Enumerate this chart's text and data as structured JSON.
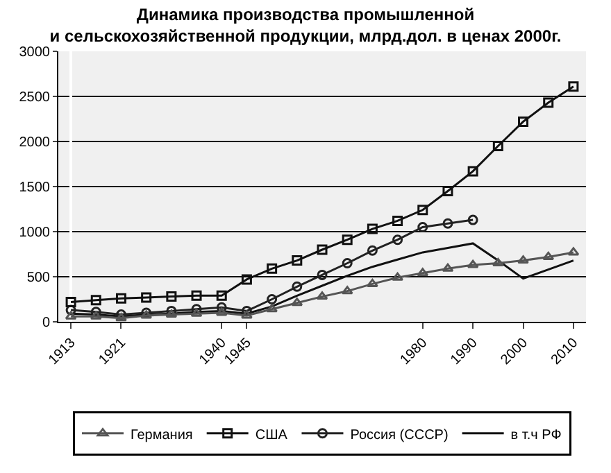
{
  "chart_data": {
    "type": "line",
    "title": "Динамика производства промышленной\nи сельскохозяйственной продукции, млрд.дол. в ценах 2000г.",
    "categories": [
      "1913",
      null,
      "1921",
      null,
      null,
      null,
      "1940",
      "1945",
      null,
      null,
      null,
      null,
      null,
      null,
      "1980",
      null,
      "1990",
      null,
      "2000",
      null,
      "2010"
    ],
    "series": [
      {
        "name": "Германия",
        "color": "#555555",
        "marker": "triangle",
        "values": [
          60,
          60,
          40,
          70,
          80,
          90,
          100,
          70,
          140,
          210,
          280,
          340,
          420,
          490,
          540,
          590,
          630,
          650,
          680,
          720,
          770
        ]
      },
      {
        "name": "США",
        "color": "#111111",
        "marker": "square",
        "values": [
          220,
          240,
          260,
          270,
          280,
          290,
          290,
          470,
          590,
          680,
          800,
          910,
          1030,
          1120,
          1240,
          1450,
          1670,
          1950,
          2220,
          2430,
          2610
        ]
      },
      {
        "name": "Россия (СССР)",
        "color": "#222222",
        "marker": "circle",
        "values": [
          130,
          110,
          80,
          100,
          120,
          140,
          160,
          120,
          250,
          390,
          520,
          650,
          790,
          910,
          1050,
          1090,
          1130,
          null,
          null,
          null,
          null
        ]
      },
      {
        "name": "в т.ч РФ",
        "color": "#111111",
        "marker": "none",
        "values": [
          90,
          80,
          60,
          80,
          90,
          110,
          120,
          90,
          170,
          290,
          400,
          510,
          610,
          690,
          770,
          820,
          870,
          680,
          480,
          580,
          680
        ]
      }
    ],
    "ylim": [
      0,
      3000
    ],
    "yticks": [
      0,
      500,
      1000,
      1500,
      2000,
      2500,
      3000
    ],
    "grid": "y",
    "legend": "bottom",
    "line_style": "solid"
  }
}
